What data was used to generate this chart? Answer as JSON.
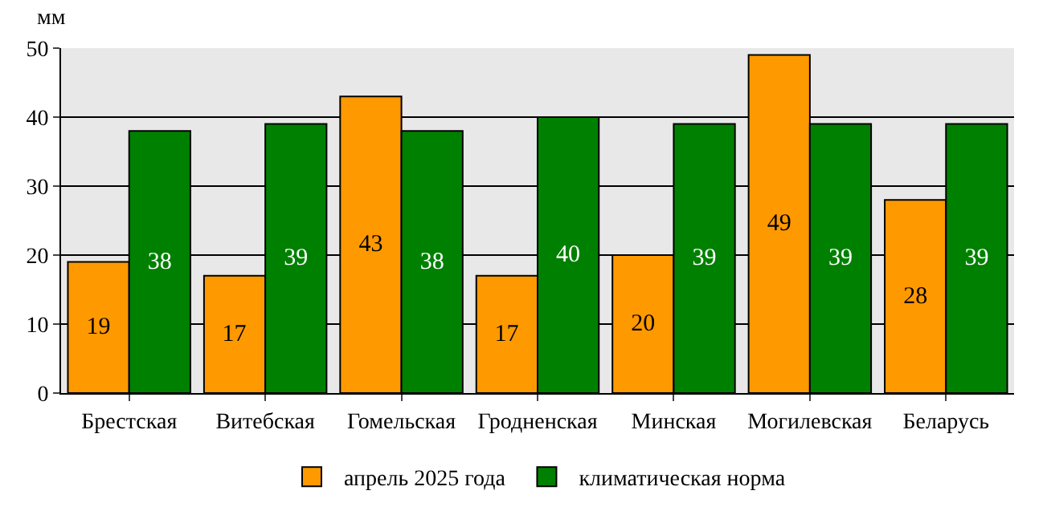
{
  "chart_data": {
    "type": "bar",
    "ylabel": "мм",
    "categories": [
      "Брестская",
      "Витебская",
      "Гомельская",
      "Гродненская",
      "Минская",
      "Могилевская",
      "Беларусь"
    ],
    "series": [
      {
        "name": "апрель 2025 года",
        "color": "#ff9900",
        "values": [
          19,
          17,
          43,
          17,
          20,
          49,
          28
        ]
      },
      {
        "name": "климатическая норма",
        "color": "#008000",
        "values": [
          38,
          39,
          38,
          40,
          39,
          39,
          39
        ]
      }
    ],
    "ylim": [
      0,
      50
    ],
    "yticks": [
      0,
      10,
      20,
      30,
      40,
      50
    ],
    "grid": "y",
    "legend": "bottom",
    "data_labels": true
  }
}
